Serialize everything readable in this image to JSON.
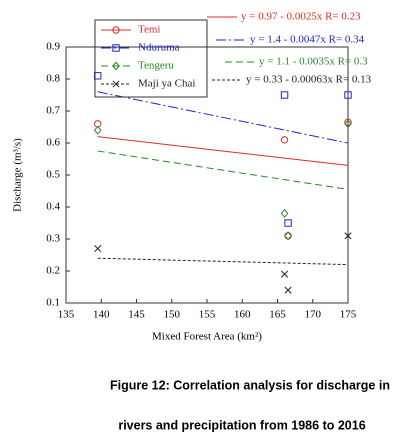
{
  "chart_data": {
    "type": "scatter",
    "x_label": "Mixed Forest Area (km²)",
    "y_label": "Discharge (m³/s)",
    "xlim": [
      135,
      175
    ],
    "xticks": [
      135,
      140,
      145,
      150,
      155,
      160,
      165,
      170,
      175
    ],
    "ylim": [
      0.1,
      0.9
    ],
    "yticks": [
      0.1,
      0.2,
      0.3,
      0.4,
      0.5,
      0.6,
      0.7,
      0.8,
      0.9
    ],
    "x": [
      139.5,
      166,
      166.5,
      175
    ],
    "trend_x": [
      139.5,
      175
    ],
    "series": [
      {
        "name": "Temi",
        "color": "#e02828",
        "marker": "circle",
        "line_style": "solid",
        "values": [
          0.66,
          0.61,
          0.31,
          0.665
        ],
        "trend_values": [
          0.62,
          0.53
        ],
        "equation": "y = 0.97 - 0.0025x   R= 0.23"
      },
      {
        "name": "Nduruma",
        "color": "#2323d0",
        "marker": "square",
        "line_style": "dashdot",
        "values": [
          0.81,
          0.75,
          0.35,
          0.75
        ],
        "trend_values": [
          0.76,
          0.6
        ],
        "equation": "y = 1.4 - 0.0047x   R= 0.34"
      },
      {
        "name": "Tengeru",
        "color": "#258a25",
        "marker": "diamond",
        "line_style": "dashed",
        "values": [
          0.64,
          0.38,
          0.31,
          0.66
        ],
        "trend_values": [
          0.575,
          0.455
        ],
        "equation": "y = 1.1 - 0.0035x   R= 0.3"
      },
      {
        "name": "Maji ya Chai",
        "color": "#222222",
        "marker": "x",
        "line_style": "dotted",
        "values": [
          0.27,
          0.19,
          0.14,
          0.31
        ],
        "trend_values": [
          0.24,
          0.22
        ],
        "equation": "y = 0.33 - 0.00063x   R= 0.13"
      }
    ],
    "caption": [
      "Figure 12: Correlation analysis for discharge in",
      "rivers and precipitation from 1986 to 2016"
    ]
  }
}
